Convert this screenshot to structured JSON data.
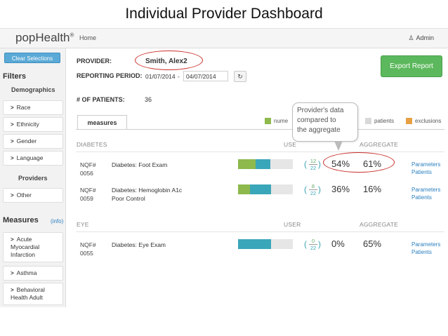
{
  "slide_title": "Individual Provider Dashboard",
  "app": {
    "logo": "popHealth",
    "logo_mark": "®",
    "nav_home": "Home",
    "admin_label": "Admin",
    "admin_icon": "user-icon"
  },
  "sidebar": {
    "clear_label": "Clear Selections",
    "filters_heading": "Filters",
    "demographics_heading": "Demographics",
    "demographics": [
      "Race",
      "Ethnicity",
      "Gender",
      "Language"
    ],
    "providers_heading": "Providers",
    "providers": [
      "Other"
    ],
    "measures_heading": "Measures",
    "info_link": "(info)",
    "measures": [
      {
        "lines": [
          "Acute",
          "Myocardial",
          "Infarction"
        ]
      },
      {
        "lines": [
          "Asthma"
        ]
      },
      {
        "lines": [
          "Behavioral",
          "Health Adult"
        ]
      }
    ]
  },
  "main": {
    "provider_label": "PROVIDER:",
    "provider_name": "Smith, Alex2",
    "period_label": "REPORTING PERIOD:",
    "period_start": "01/07/2014",
    "period_sep": "-",
    "period_end": "04/07/2014",
    "refresh_icon": "refresh-icon",
    "export_label": "Export Report",
    "patients_label": "# OF PATIENTS:",
    "patients_count": "36",
    "tab_label": "measures",
    "legend": [
      {
        "label": "nume",
        "color": "#8db94d"
      },
      {
        "label": "patients",
        "color": "#d9d9d9"
      },
      {
        "label": "exclusions",
        "color": "#e8a044"
      }
    ],
    "callout_lines": [
      "Provider's data",
      "compared to",
      "the aggregate"
    ],
    "sections": [
      {
        "name": "DIABETES",
        "user_col": "USE",
        "aggregate_col": "AGGREGATE",
        "rows": [
          {
            "nqf": [
              "NQF#",
              "0056"
            ],
            "name": [
              "Diabetes: Foot Exam"
            ],
            "num": "12",
            "den": "22",
            "user_pct": "54%",
            "agg_pct": "61%",
            "bar": [
              0.32,
              0.27
            ],
            "links": [
              "Parameters",
              "Patients"
            ]
          },
          {
            "nqf": [
              "NQF#",
              "0059"
            ],
            "name": [
              "Diabetes: Hemoglobin A1c",
              "Poor Control"
            ],
            "num": "8",
            "den": "22",
            "user_pct": "36%",
            "agg_pct": "16%",
            "bar": [
              0.22,
              0.38
            ],
            "links": [
              "Parameters",
              "Patients"
            ]
          }
        ]
      },
      {
        "name": "EYE",
        "user_col": "USER",
        "aggregate_col": "AGGREGATE",
        "rows": [
          {
            "nqf": [
              "NQF#",
              "0055"
            ],
            "name": [
              "Diabetes: Eye Exam"
            ],
            "num": "0",
            "den": "22",
            "user_pct": "0%",
            "agg_pct": "65%",
            "bar": [
              0.0,
              0.6
            ],
            "links": [
              "Parameters",
              "Patients"
            ]
          }
        ]
      }
    ],
    "colors": {
      "numerator": "#8db94d",
      "denominator": "#3aa6b9",
      "highlight": "#c9302c",
      "accent_green": "#5cb85c"
    }
  }
}
